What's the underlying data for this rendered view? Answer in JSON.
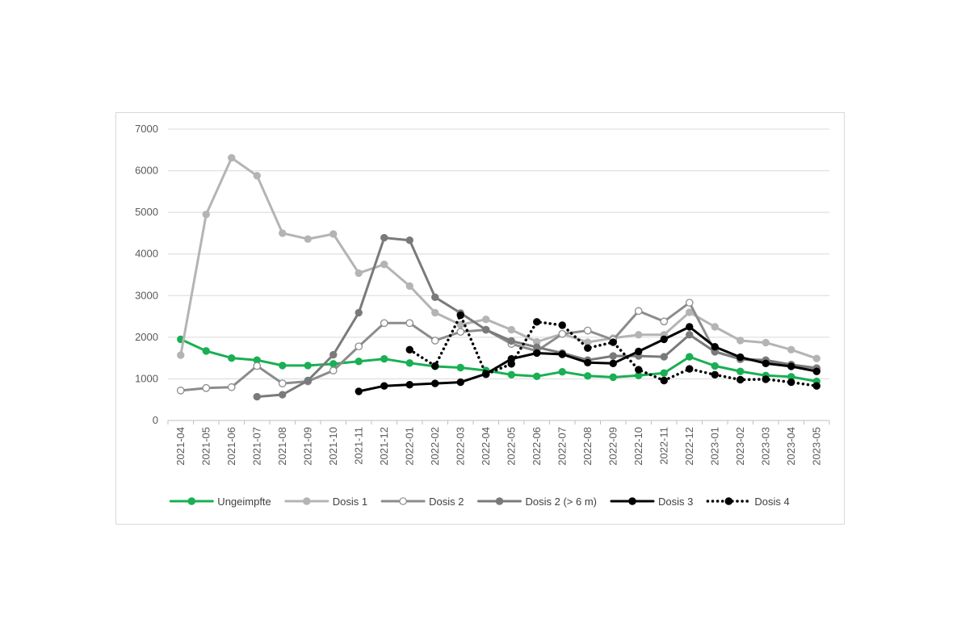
{
  "chart_data": {
    "type": "line",
    "title": "",
    "xlabel": "",
    "ylabel": "",
    "ylim": [
      0,
      7000
    ],
    "yticks": [
      0,
      1000,
      2000,
      3000,
      4000,
      5000,
      6000,
      7000
    ],
    "grid": true,
    "legend_position": "bottom",
    "categories": [
      "2021-04",
      "2021-05",
      "2021-06",
      "2021-07",
      "2021-08",
      "2021-09",
      "2021-10",
      "2021-11",
      "2021-12",
      "2022-01",
      "2022-02",
      "2022-03",
      "2022-04",
      "2022-05",
      "2022-06",
      "2022-07",
      "2022-08",
      "2022-09",
      "2022-10",
      "2022-11",
      "2022-12",
      "2023-01",
      "2023-02",
      "2023-03",
      "2023-04",
      "2023-05"
    ],
    "series": [
      {
        "name": "Ungeimpfte",
        "color": "#1aaf54",
        "style": "solid",
        "marker": "filled",
        "values": [
          1950,
          1670,
          1500,
          1450,
          1320,
          1320,
          1360,
          1420,
          1480,
          1380,
          1300,
          1270,
          1200,
          1100,
          1060,
          1170,
          1070,
          1040,
          1080,
          1140,
          1530,
          1310,
          1180,
          1080,
          1050,
          940
        ]
      },
      {
        "name": "Dosis 1",
        "color": "#b4b4b4",
        "style": "solid",
        "marker": "filled",
        "values": [
          1570,
          4950,
          6310,
          5880,
          4500,
          4360,
          4480,
          3540,
          3750,
          3230,
          2590,
          2300,
          2430,
          2180,
          1890,
          2080,
          1880,
          1980,
          2060,
          2060,
          2600,
          2250,
          1920,
          1870,
          1700,
          1490
        ]
      },
      {
        "name": "Dosis 2",
        "color": "#8c8c8c",
        "style": "solid",
        "marker": "hollow",
        "values": [
          720,
          780,
          800,
          1310,
          890,
          940,
          1200,
          1780,
          2340,
          2340,
          1920,
          2130,
          2180,
          1840,
          1670,
          2080,
          2160,
          1940,
          2630,
          2380,
          2830,
          1660,
          1470,
          1430,
          1340,
          1250
        ]
      },
      {
        "name": "Dosis 2 (> 6 m)",
        "color": "#7a7a7a",
        "style": "solid",
        "marker": "filled",
        "values": [
          null,
          null,
          null,
          570,
          620,
          960,
          1580,
          2590,
          4390,
          4330,
          2960,
          2580,
          2180,
          1910,
          1760,
          1620,
          1450,
          1550,
          1550,
          1530,
          2060,
          1650,
          1480,
          1450,
          1340,
          1260
        ]
      },
      {
        "name": "Dosis 3",
        "color": "#000000",
        "style": "solid",
        "marker": "filled",
        "values": [
          null,
          null,
          null,
          null,
          null,
          null,
          null,
          700,
          830,
          860,
          890,
          920,
          1120,
          1480,
          1620,
          1590,
          1390,
          1370,
          1660,
          1950,
          2250,
          1770,
          1520,
          1370,
          1300,
          1180
        ]
      },
      {
        "name": "Dosis 4",
        "color": "#000000",
        "style": "dotted",
        "marker": "filled",
        "values": [
          null,
          null,
          null,
          null,
          null,
          null,
          null,
          null,
          null,
          1700,
          1310,
          2530,
          1110,
          1360,
          2370,
          2290,
          1740,
          1880,
          1220,
          960,
          1240,
          1100,
          980,
          990,
          920,
          830
        ]
      }
    ]
  }
}
